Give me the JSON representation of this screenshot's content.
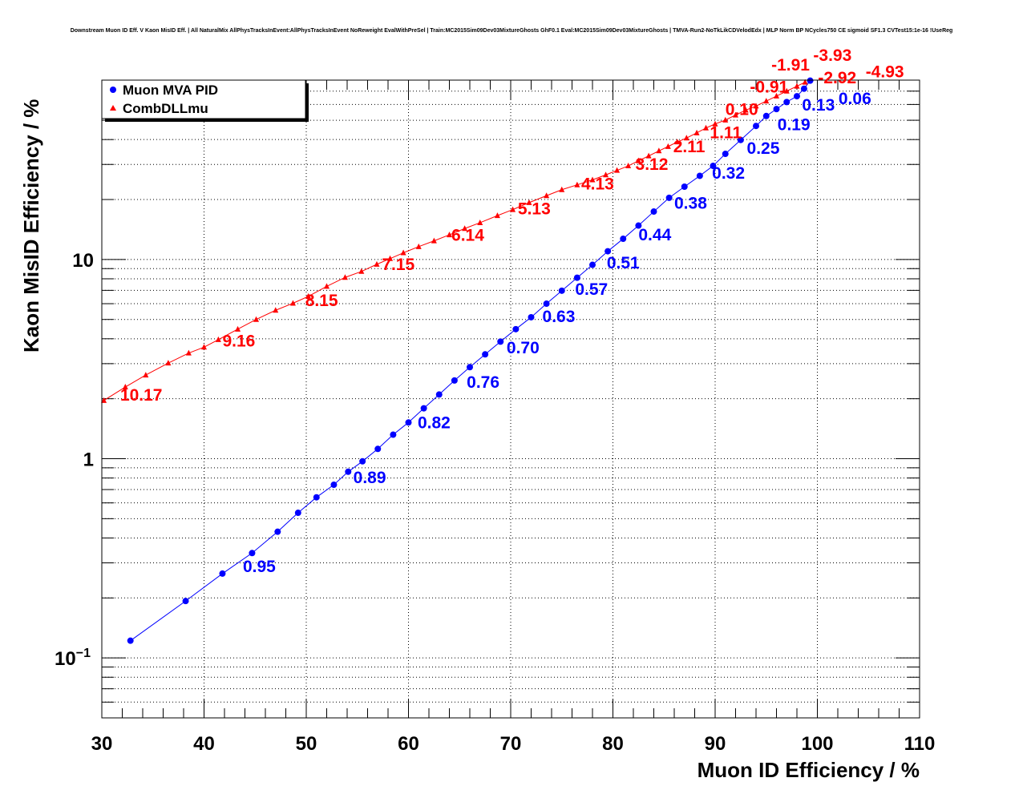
{
  "chart_data": {
    "type": "scatter",
    "title": "Downstream Muon ID Eff. V Kaon MisID Eff. | All NaturalMix AllPhysTracksInEvent:AllPhysTracksInEvent NoReweight EvalWithPreSel | Train:MC2015Sim09Dev03MixtureGhosts GhF0.1 Eval:MC2015Sim09Dev03MixtureGhosts | TMVA-Run2-NoTkLikCDVelodEdx | MLP Norm BP NCycles750 CE sigmoid SF1.3 CVTest15:1e-16 !UseReg",
    "xlabel": "Muon ID Efficiency / %",
    "ylabel": "Kaon MisID Efficiency / %",
    "xlim": [
      30,
      110
    ],
    "ylim": [
      0.05,
      79.5
    ],
    "yscale": "log",
    "grid": true,
    "legend_position": "top-left",
    "x_ticks": [
      "30",
      "40",
      "50",
      "60",
      "70",
      "80",
      "90",
      "100",
      "110"
    ],
    "y_ticks": [
      {
        "value": 10,
        "label": "10"
      },
      {
        "value": 1,
        "label": "1"
      },
      {
        "value": 0.1,
        "label": "10",
        "exp": "−1"
      }
    ],
    "series": [
      {
        "name": "Muon MVA PID",
        "color": "#0000ff",
        "marker": "circle",
        "x": [
          32.8,
          38.2,
          41.8,
          44.7,
          47.2,
          49.2,
          51.0,
          52.7,
          54.1,
          55.5,
          57.0,
          58.5,
          60.0,
          61.5,
          63.0,
          64.5,
          66.0,
          67.5,
          69.0,
          70.5,
          72.0,
          73.5,
          75.0,
          76.5,
          78.0,
          79.5,
          81.0,
          82.5,
          84.0,
          85.5,
          87.0,
          88.5,
          89.8,
          91.0,
          92.5,
          94.0,
          95.0,
          96.0,
          97.0,
          98.0,
          98.7,
          99.3
        ],
        "y": [
          0.122,
          0.193,
          0.265,
          0.336,
          0.43,
          0.535,
          0.64,
          0.74,
          0.86,
          0.97,
          1.12,
          1.32,
          1.52,
          1.79,
          2.1,
          2.47,
          2.88,
          3.34,
          3.87,
          4.47,
          5.13,
          6.0,
          6.97,
          8.1,
          9.4,
          11.0,
          12.7,
          14.8,
          17.4,
          20.4,
          23.2,
          26.3,
          29.5,
          33.9,
          39.8,
          46.8,
          52.5,
          56.9,
          61.7,
          66.0,
          72.0,
          79.0
        ],
        "annotations": [
          {
            "text": "0.95",
            "x": 43.8,
            "y": 0.285
          },
          {
            "text": "0.89",
            "x": 54.6,
            "y": 0.796
          },
          {
            "text": "0.82",
            "x": 60.9,
            "y": 1.5
          },
          {
            "text": "0.76",
            "x": 65.7,
            "y": 2.4
          },
          {
            "text": "0.70",
            "x": 69.6,
            "y": 3.57
          },
          {
            "text": "0.63",
            "x": 73.1,
            "y": 5.13
          },
          {
            "text": "0.57",
            "x": 76.3,
            "y": 7.03
          },
          {
            "text": "0.51",
            "x": 79.4,
            "y": 9.55
          },
          {
            "text": "0.44",
            "x": 82.5,
            "y": 13.2
          },
          {
            "text": "0.38",
            "x": 86.0,
            "y": 19.0
          },
          {
            "text": "0.32",
            "x": 89.7,
            "y": 26.9
          },
          {
            "text": "0.25",
            "x": 93.1,
            "y": 35.9
          },
          {
            "text": "0.19",
            "x": 96.1,
            "y": 44.5
          },
          {
            "text": "0.13",
            "x": 98.5,
            "y": 53.0
          },
          {
            "text": "0.06",
            "x": 100.5,
            "y": 63.8
          }
        ]
      },
      {
        "name": "CombDLLmu",
        "color": "#ff0000",
        "marker": "triangle",
        "x": [
          30.2,
          32.3,
          34.3,
          36.5,
          38.5,
          40.0,
          41.4,
          43.3,
          45.1,
          47.0,
          48.7,
          50.2,
          52.0,
          53.8,
          55.4,
          56.9,
          58.2,
          59.5,
          61.0,
          62.5,
          64.0,
          65.5,
          67.0,
          68.7,
          70.2,
          71.8,
          73.5,
          75.0,
          76.5,
          78.0,
          79.3,
          80.4,
          81.5,
          82.5,
          83.5,
          84.5,
          85.4,
          86.3,
          87.2,
          88.2,
          89.1,
          90.0,
          91.0,
          92.0,
          93.0,
          94.0,
          95.0,
          96.0,
          97.0,
          98.0,
          98.8
        ],
        "y": [
          1.96,
          2.29,
          2.63,
          3.02,
          3.39,
          3.63,
          3.96,
          4.47,
          5.0,
          5.56,
          6.03,
          6.53,
          7.33,
          8.13,
          8.71,
          9.46,
          10.1,
          10.8,
          11.6,
          12.4,
          13.3,
          14.3,
          15.3,
          16.6,
          17.8,
          19.3,
          20.9,
          22.4,
          23.7,
          25.1,
          26.6,
          28.0,
          29.5,
          31.3,
          33.1,
          35.1,
          36.9,
          38.9,
          40.7,
          43.2,
          45.7,
          47.9,
          50.1,
          53.1,
          56.2,
          58.9,
          62.4,
          66.1,
          70.0,
          74.1,
          77.6
        ],
        "annotations": [
          {
            "text": "10.17",
            "x": 31.8,
            "y": 2.07
          },
          {
            "text": "9.16",
            "x": 41.8,
            "y": 3.86
          },
          {
            "text": "8.15",
            "x": 49.9,
            "y": 6.18
          },
          {
            "text": "7.15",
            "x": 57.4,
            "y": 9.37
          },
          {
            "text": "6.14",
            "x": 64.2,
            "y": 13.1
          },
          {
            "text": "5.13",
            "x": 70.7,
            "y": 17.8
          },
          {
            "text": "4.13",
            "x": 76.9,
            "y": 23.7
          },
          {
            "text": "3.12",
            "x": 82.2,
            "y": 29.8
          },
          {
            "text": "2.11",
            "x": 85.9,
            "y": 36.6
          },
          {
            "text": "1.11",
            "x": 88.7,
            "y": 42.9
          },
          {
            "text": "0.10",
            "x": 91.0,
            "y": 50.2
          },
          {
            "text": "-0.91",
            "x": 93.4,
            "y": 58.2
          },
          {
            "text": "-1.91",
            "x": 95.5,
            "y": 63.8
          },
          {
            "text": "-2.92",
            "x": 98.5,
            "y": 72.6
          },
          {
            "text": "-3.93",
            "x": 99.6,
            "y": 79.4
          },
          {
            "text": "-4.93",
            "x": 100.8,
            "y": 87.0
          }
        ]
      }
    ]
  }
}
